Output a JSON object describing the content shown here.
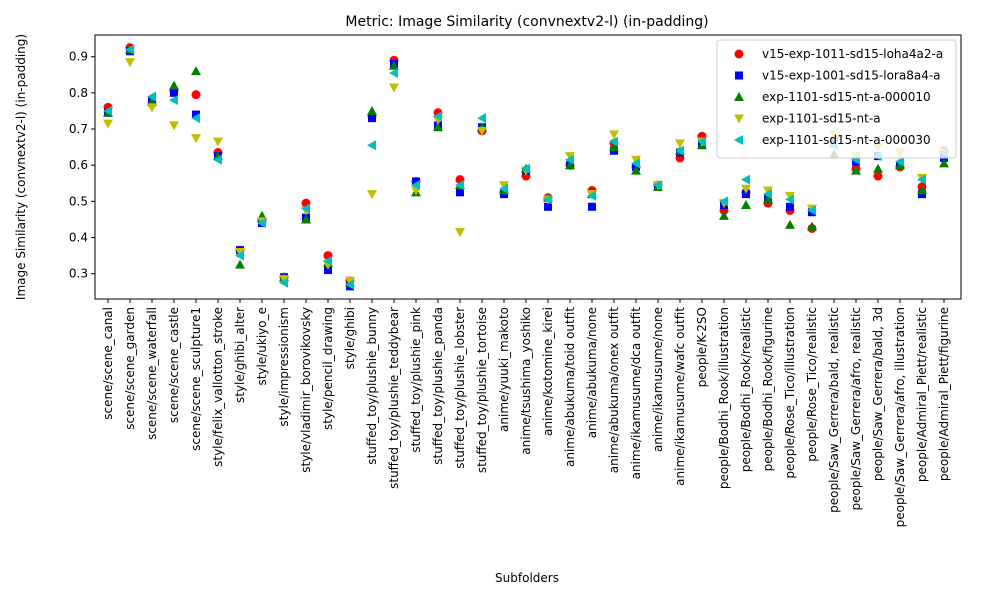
{
  "chart_data": {
    "type": "scatter",
    "title": "Metric: Image Similarity (convnextv2-l) (in-padding)",
    "xlabel": "Subfolders",
    "ylabel": "Image Similarity (convnextv2-l) (in-padding)",
    "ylim": [
      0.23,
      0.96
    ],
    "yticks": [
      0.3,
      0.4,
      0.5,
      0.6,
      0.7,
      0.8,
      0.9
    ],
    "grid": false,
    "legend_position": "top-right",
    "categories": [
      "scene/scene_canal",
      "scene/scene_garden",
      "scene/scene_waterfall",
      "scene/scene_castle",
      "scene/scene_sculpture1",
      "style/felix_vallotton_stroke",
      "style/ghibi_alter",
      "style/ukiyo_e",
      "style/impressionism",
      "style/vladimir_borovikovsky",
      "style/pencil_drawing",
      "style/ghibi",
      "stuffed_toy/plushie_bunny",
      "stuffed_toy/plushie_teddybear",
      "stuffed_toy/plushie_pink",
      "stuffed_toy/plushie_panda",
      "stuffed_toy/plushie_lobster",
      "stuffed_toy/plushie_tortoise",
      "anime/yuuki_makoto",
      "anime/tsushima_yoshiko",
      "anime/kotomine_kirei",
      "anime/abukuma/toid outfit",
      "anime/abukuma/none",
      "anime/abukuma/onex outfit",
      "anime/ikamusume/dca outfit",
      "anime/ikamusume/none",
      "anime/ikamusume/wafc outfit",
      "people/K-2SO",
      "people/Bodhi_Rook/illustration",
      "people/Bodhi_Rook/realistic",
      "people/Bodhi_Rook/figurine",
      "people/Rose_Tico/illustration",
      "people/Rose_Tico/realistic",
      "people/Saw_Gerrera/bald, realistic",
      "people/Saw_Gerrera/afro, realistic",
      "people/Saw_Gerrera/bald, 3d",
      "people/Saw_Gerrera/afro, illustration",
      "people/Admiral_Piett/realistic",
      "people/Admiral_Piett/figurine"
    ],
    "series": [
      {
        "name": "v15-exp-1011-sd15-loha4a2-a",
        "marker": "circle",
        "color": "#ff0000",
        "values": [
          0.76,
          0.925,
          0.77,
          0.805,
          0.795,
          0.635,
          0.365,
          0.445,
          0.29,
          0.495,
          0.35,
          0.28,
          0.735,
          0.89,
          0.555,
          0.745,
          0.56,
          0.695,
          0.525,
          0.57,
          0.51,
          0.6,
          0.53,
          0.66,
          0.595,
          0.545,
          0.62,
          0.68,
          0.475,
          0.525,
          0.495,
          0.475,
          0.425,
          0.67,
          0.59,
          0.57,
          0.595,
          0.54,
          0.64
        ]
      },
      {
        "name": "v15-exp-1001-sd15-lora8a4-a",
        "marker": "square",
        "color": "#0000ff",
        "values": [
          0.745,
          0.915,
          0.78,
          0.8,
          0.74,
          0.625,
          0.365,
          0.44,
          0.29,
          0.455,
          0.31,
          0.265,
          0.73,
          0.88,
          0.555,
          0.71,
          0.525,
          0.705,
          0.52,
          0.585,
          0.485,
          0.6,
          0.485,
          0.64,
          0.595,
          0.54,
          0.635,
          0.66,
          0.49,
          0.52,
          0.51,
          0.485,
          0.47,
          0.66,
          0.61,
          0.625,
          0.6,
          0.52,
          0.62
        ]
      },
      {
        "name": "exp-1101-sd15-nt-a-000010",
        "marker": "triangle-up",
        "color": "#008000",
        "values": [
          0.745,
          0.92,
          0.775,
          0.82,
          0.86,
          0.625,
          0.325,
          0.46,
          0.29,
          0.45,
          0.33,
          0.275,
          0.75,
          0.875,
          0.525,
          0.705,
          0.545,
          0.705,
          0.53,
          0.59,
          0.51,
          0.6,
          0.52,
          0.65,
          0.585,
          0.54,
          0.64,
          0.655,
          0.46,
          0.49,
          0.505,
          0.435,
          0.43,
          0.63,
          0.585,
          0.59,
          0.6,
          0.53,
          0.605
        ]
      },
      {
        "name": "exp-1101-sd15-nt-a",
        "marker": "triangle-down",
        "color": "#bfbf00",
        "values": [
          0.715,
          0.885,
          0.76,
          0.71,
          0.675,
          0.665,
          0.36,
          0.445,
          0.285,
          0.475,
          0.325,
          0.28,
          0.52,
          0.815,
          0.53,
          0.725,
          0.415,
          0.695,
          0.545,
          0.585,
          0.505,
          0.625,
          0.52,
          0.685,
          0.615,
          0.545,
          0.66,
          0.665,
          0.495,
          0.535,
          0.53,
          0.515,
          0.48,
          0.685,
          0.625,
          0.65,
          0.635,
          0.565,
          0.635
        ]
      },
      {
        "name": "exp-1101-sd15-nt-a-000030",
        "marker": "triangle-left",
        "color": "#00bfbf",
        "values": [
          0.75,
          0.92,
          0.79,
          0.78,
          0.73,
          0.615,
          0.35,
          0.44,
          0.275,
          0.48,
          0.335,
          0.27,
          0.655,
          0.855,
          0.545,
          0.735,
          0.545,
          0.73,
          0.535,
          0.59,
          0.505,
          0.615,
          0.515,
          0.665,
          0.605,
          0.545,
          0.64,
          0.665,
          0.5,
          0.56,
          0.52,
          0.505,
          0.475,
          0.655,
          0.615,
          0.625,
          0.61,
          0.56,
          0.635
        ]
      }
    ]
  }
}
